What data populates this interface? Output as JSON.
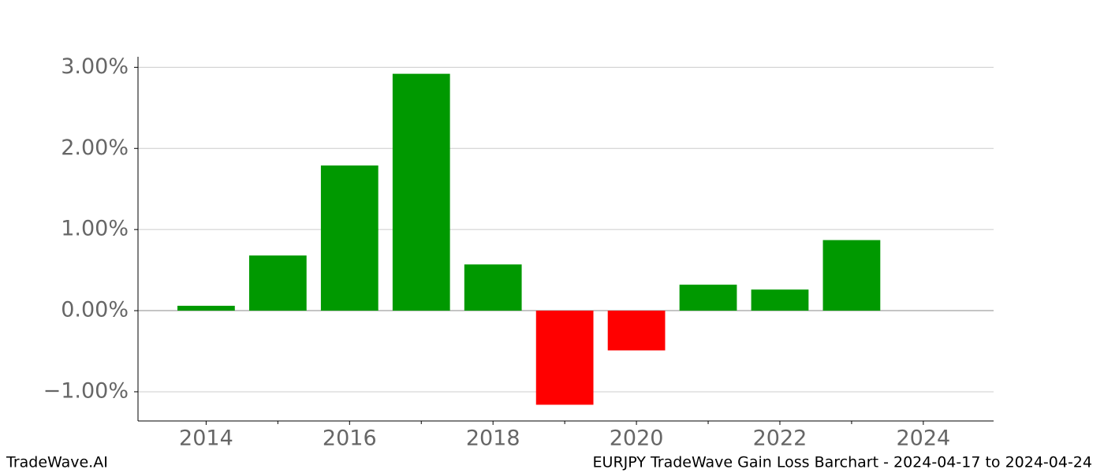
{
  "chart_data": {
    "type": "bar",
    "title": "EURJPY TradeWave Gain Loss Barchart - 2024-04-17 to 2024-04-24",
    "watermark": "TradeWave.AI",
    "x": [
      2014,
      2015,
      2016,
      2017,
      2018,
      2019,
      2020,
      2021,
      2022,
      2023
    ],
    "values": [
      0.06,
      0.68,
      1.79,
      2.92,
      0.57,
      -1.16,
      -0.49,
      0.32,
      0.26,
      0.87
    ],
    "positive_color": "#009900",
    "negative_color": "#ff0000",
    "xlim": [
      2013.05,
      2024.98
    ],
    "xticks": [
      2014,
      2016,
      2018,
      2020,
      2022,
      2024
    ],
    "xminorticks": [
      2015,
      2017,
      2019,
      2021,
      2023
    ],
    "ylim": [
      -1.36,
      3.13
    ],
    "yticks": [
      {
        "value": -1,
        "label": "−1.00%"
      },
      {
        "value": 0,
        "label": "0.00%"
      },
      {
        "value": 1,
        "label": "1.00%"
      },
      {
        "value": 2,
        "label": "2.00%"
      },
      {
        "value": 3,
        "label": "3.00%"
      }
    ],
    "grid": true
  }
}
